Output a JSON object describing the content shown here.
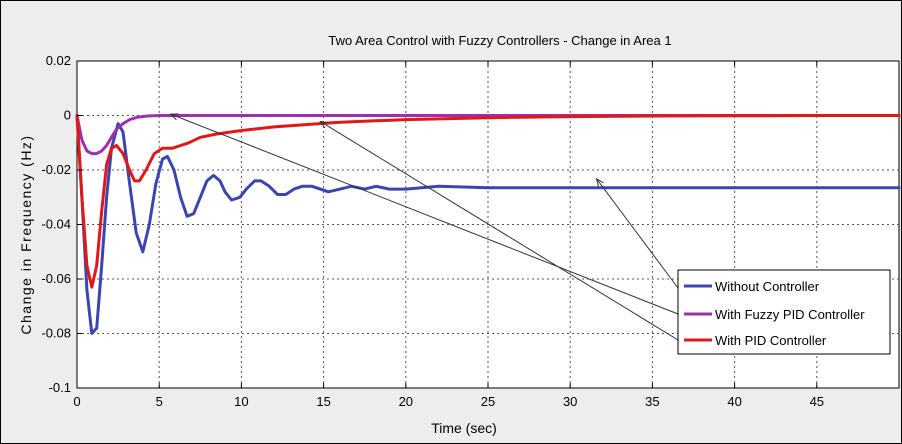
{
  "chart_data": {
    "type": "line",
    "title": "Two Area Control with Fuzzy Controllers - Change in Area 1",
    "xlabel": "Time (sec)",
    "ylabel": "Change in Frequency (Hz)",
    "xlim": [
      0,
      50
    ],
    "ylim": [
      -0.1,
      0.02
    ],
    "x_ticks": [
      "0",
      "5",
      "10",
      "15",
      "20",
      "25",
      "30",
      "35",
      "40",
      "45"
    ],
    "y_ticks": [
      "0.02",
      "0",
      "-0.02",
      "-0.04",
      "-0.06",
      "-0.08",
      "-0.1"
    ],
    "grid": true,
    "legend_position": "bottom-right",
    "series": [
      {
        "name": "Without Controller",
        "color": "#3a45b0",
        "x": [
          0,
          0.3,
          0.6,
          0.9,
          1.2,
          1.5,
          1.8,
          2.1,
          2.5,
          2.8,
          3.2,
          3.6,
          4.0,
          4.4,
          4.8,
          5.2,
          5.5,
          5.9,
          6.3,
          6.7,
          7.1,
          7.5,
          7.9,
          8.3,
          8.7,
          9.0,
          9.4,
          9.9,
          10.3,
          10.8,
          11.2,
          11.7,
          12.2,
          12.7,
          13.2,
          13.7,
          14.3,
          14.8,
          15.3,
          16,
          16.7,
          17.5,
          18.2,
          19,
          20,
          22,
          25,
          30,
          35,
          40,
          45,
          50
        ],
        "y": [
          0,
          -0.03,
          -0.064,
          -0.08,
          -0.078,
          -0.055,
          -0.03,
          -0.012,
          -0.003,
          -0.006,
          -0.025,
          -0.043,
          -0.05,
          -0.04,
          -0.025,
          -0.016,
          -0.015,
          -0.02,
          -0.03,
          -0.037,
          -0.036,
          -0.03,
          -0.024,
          -0.022,
          -0.024,
          -0.028,
          -0.031,
          -0.03,
          -0.027,
          -0.024,
          -0.024,
          -0.026,
          -0.029,
          -0.029,
          -0.027,
          -0.026,
          -0.026,
          -0.027,
          -0.028,
          -0.027,
          -0.026,
          -0.027,
          -0.026,
          -0.027,
          -0.027,
          -0.026,
          -0.0265,
          -0.0265,
          -0.0265,
          -0.0265,
          -0.0265,
          -0.0265
        ]
      },
      {
        "name": "With Fuzzy PID Controller",
        "color": "#a02fb0",
        "x": [
          0,
          0.3,
          0.6,
          0.9,
          1.2,
          1.5,
          1.8,
          2.1,
          2.4,
          2.8,
          3.2,
          3.7,
          4.3,
          5,
          6,
          8,
          10,
          15,
          20,
          30,
          40,
          50
        ],
        "y": [
          0,
          -0.009,
          -0.013,
          -0.014,
          -0.014,
          -0.013,
          -0.011,
          -0.008,
          -0.005,
          -0.003,
          -0.0015,
          -0.0006,
          -0.0002,
          0,
          0,
          0,
          0,
          0,
          0,
          0,
          0,
          0
        ]
      },
      {
        "name": "With PID Controller",
        "color": "#e01818",
        "x": [
          0,
          0.3,
          0.6,
          0.9,
          1.2,
          1.5,
          1.8,
          2.1,
          2.4,
          2.8,
          3.2,
          3.5,
          3.8,
          4.2,
          4.7,
          5.2,
          5.8,
          6.3,
          6.8,
          7.5,
          8.5,
          10,
          12,
          14,
          16,
          18,
          20,
          25,
          30,
          35,
          40,
          45,
          50
        ],
        "y": [
          0,
          -0.03,
          -0.055,
          -0.063,
          -0.055,
          -0.035,
          -0.018,
          -0.012,
          -0.011,
          -0.014,
          -0.02,
          -0.024,
          -0.024,
          -0.02,
          -0.014,
          -0.012,
          -0.012,
          -0.011,
          -0.01,
          -0.008,
          -0.0068,
          -0.0055,
          -0.0042,
          -0.0033,
          -0.0025,
          -0.002,
          -0.0015,
          -0.0008,
          -0.0004,
          -0.0002,
          -0.0001,
          0,
          0
        ]
      }
    ]
  }
}
